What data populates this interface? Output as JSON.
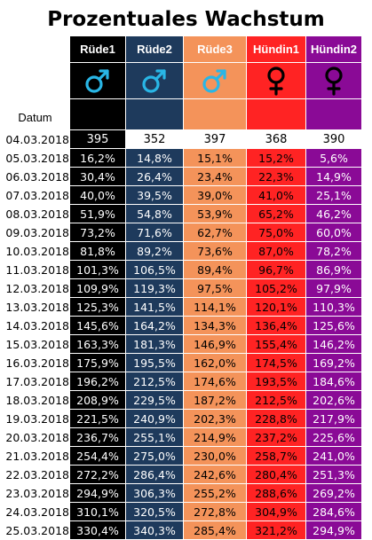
{
  "title": "Prozentuales Wachstum",
  "date_label": "Datum",
  "columns": [
    {
      "name": "Rüde1",
      "icon": "male-symbol-icon",
      "icon_color": "#29b6e6"
    },
    {
      "name": "Rüde2",
      "icon": "male-symbol-icon",
      "icon_color": "#29b6e6"
    },
    {
      "name": "Rüde3",
      "icon": "male-symbol-icon",
      "icon_color": "#29b6e6"
    },
    {
      "name": "Hündin1",
      "icon": "female-symbol-icon",
      "icon_color": "#000000"
    },
    {
      "name": "Hündin2",
      "icon": "female-symbol-icon",
      "icon_color": "#000000"
    }
  ],
  "column_colors": [
    "#000000",
    "#1e3a5c",
    "#f4935a",
    "#ff2323",
    "#8a0a96"
  ],
  "rows": [
    {
      "date": "04.03.2018",
      "values": [
        "395",
        "352",
        "397",
        "368",
        "390"
      ]
    },
    {
      "date": "05.03.2018",
      "values": [
        "16,2%",
        "14,8%",
        "15,1%",
        "15,2%",
        "5,6%"
      ]
    },
    {
      "date": "06.03.2018",
      "values": [
        "30,4%",
        "26,4%",
        "23,4%",
        "22,3%",
        "14,9%"
      ]
    },
    {
      "date": "07.03.2018",
      "values": [
        "40,0%",
        "39,5%",
        "39,0%",
        "41,0%",
        "25,1%"
      ]
    },
    {
      "date": "08.03.2018",
      "values": [
        "51,9%",
        "54,8%",
        "53,9%",
        "65,2%",
        "46,2%"
      ]
    },
    {
      "date": "09.03.2018",
      "values": [
        "73,2%",
        "71,6%",
        "62,7%",
        "75,0%",
        "60,0%"
      ]
    },
    {
      "date": "10.03.2018",
      "values": [
        "81,8%",
        "89,2%",
        "73,6%",
        "87,0%",
        "78,2%"
      ]
    },
    {
      "date": "11.03.2018",
      "values": [
        "101,3%",
        "106,5%",
        "89,4%",
        "96,7%",
        "86,9%"
      ]
    },
    {
      "date": "12.03.2018",
      "values": [
        "109,9%",
        "119,3%",
        "97,5%",
        "105,2%",
        "97,9%"
      ]
    },
    {
      "date": "13.03.2018",
      "values": [
        "125,3%",
        "141,5%",
        "114,1%",
        "120,1%",
        "110,3%"
      ]
    },
    {
      "date": "14.03.2018",
      "values": [
        "145,6%",
        "164,2%",
        "134,3%",
        "136,4%",
        "125,6%"
      ]
    },
    {
      "date": "15.03.2018",
      "values": [
        "163,3%",
        "181,3%",
        "146,9%",
        "155,4%",
        "146,2%"
      ]
    },
    {
      "date": "16.03.2018",
      "values": [
        "175,9%",
        "195,5%",
        "162,0%",
        "174,5%",
        "169,2%"
      ]
    },
    {
      "date": "17.03.2018",
      "values": [
        "196,2%",
        "212,5%",
        "174,6%",
        "193,5%",
        "184,6%"
      ]
    },
    {
      "date": "18.03.2018",
      "values": [
        "208,9%",
        "229,5%",
        "187,2%",
        "212,5%",
        "202,6%"
      ]
    },
    {
      "date": "19.03.2018",
      "values": [
        "221,5%",
        "240,9%",
        "202,3%",
        "228,8%",
        "217,9%"
      ]
    },
    {
      "date": "20.03.2018",
      "values": [
        "236,7%",
        "255,1%",
        "214,9%",
        "237,2%",
        "225,6%"
      ]
    },
    {
      "date": "21.03.2018",
      "values": [
        "254,4%",
        "275,0%",
        "230,0%",
        "258,7%",
        "241,0%"
      ]
    },
    {
      "date": "22.03.2018",
      "values": [
        "272,2%",
        "286,4%",
        "242,6%",
        "280,4%",
        "251,3%"
      ]
    },
    {
      "date": "23.03.2018",
      "values": [
        "294,9%",
        "306,3%",
        "255,2%",
        "288,6%",
        "269,2%"
      ]
    },
    {
      "date": "24.03.2018",
      "values": [
        "310,1%",
        "320,5%",
        "272,8%",
        "304,9%",
        "284,6%"
      ]
    },
    {
      "date": "25.03.2018",
      "values": [
        "330,4%",
        "340,3%",
        "285,4%",
        "321,2%",
        "294,9%"
      ]
    }
  ]
}
